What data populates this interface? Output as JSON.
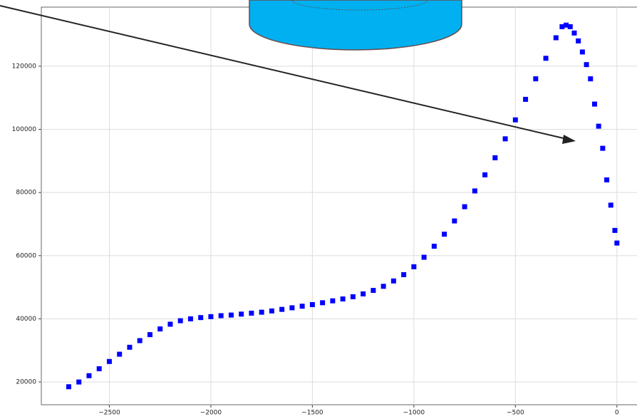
{
  "chart_data": {
    "type": "scatter",
    "color": "#0000ff",
    "grid": true,
    "x": [
      -2700,
      -2650,
      -2600,
      -2550,
      -2500,
      -2450,
      -2400,
      -2350,
      -2300,
      -2250,
      -2200,
      -2150,
      -2100,
      -2050,
      -2000,
      -1950,
      -1900,
      -1850,
      -1800,
      -1750,
      -1700,
      -1650,
      -1600,
      -1550,
      -1500,
      -1450,
      -1400,
      -1350,
      -1300,
      -1250,
      -1200,
      -1150,
      -1100,
      -1050,
      -1000,
      -950,
      -900,
      -850,
      -800,
      -750,
      -700,
      -650,
      -600,
      -550,
      -500,
      -450,
      -400,
      -350,
      -300,
      -270,
      -250,
      -230,
      -210,
      -190,
      -170,
      -150,
      -130,
      -110,
      -90,
      -70,
      -50,
      -30,
      -10,
      0
    ],
    "values": [
      18500,
      20000,
      22000,
      24200,
      26500,
      28800,
      31000,
      33100,
      35000,
      36800,
      38300,
      39400,
      40000,
      40400,
      40700,
      41000,
      41200,
      41500,
      41800,
      42100,
      42500,
      43000,
      43500,
      44000,
      44500,
      45100,
      45700,
      46300,
      47000,
      47900,
      49000,
      50300,
      52000,
      54000,
      56500,
      59500,
      63000,
      66800,
      71000,
      75500,
      80500,
      85600,
      91000,
      97000,
      103000,
      109500,
      116000,
      122500,
      129000,
      132500,
      133000,
      132500,
      130500,
      128000,
      124500,
      120500,
      116000,
      108000,
      101000,
      94000,
      84000,
      76000,
      68000,
      64000
    ],
    "xlim": [
      -2835,
      113
    ],
    "ylim": [
      12800,
      138700
    ],
    "xticks": [
      {
        "value": -2500,
        "label": "−2500"
      },
      {
        "value": -2000,
        "label": "−2000"
      },
      {
        "value": -1500,
        "label": "−1500"
      },
      {
        "value": -1000,
        "label": "−1000"
      },
      {
        "value": -500,
        "label": "−500"
      },
      0
    ],
    "yticks": [
      20000,
      40000,
      60000,
      80000,
      100000,
      120000
    ]
  }
}
